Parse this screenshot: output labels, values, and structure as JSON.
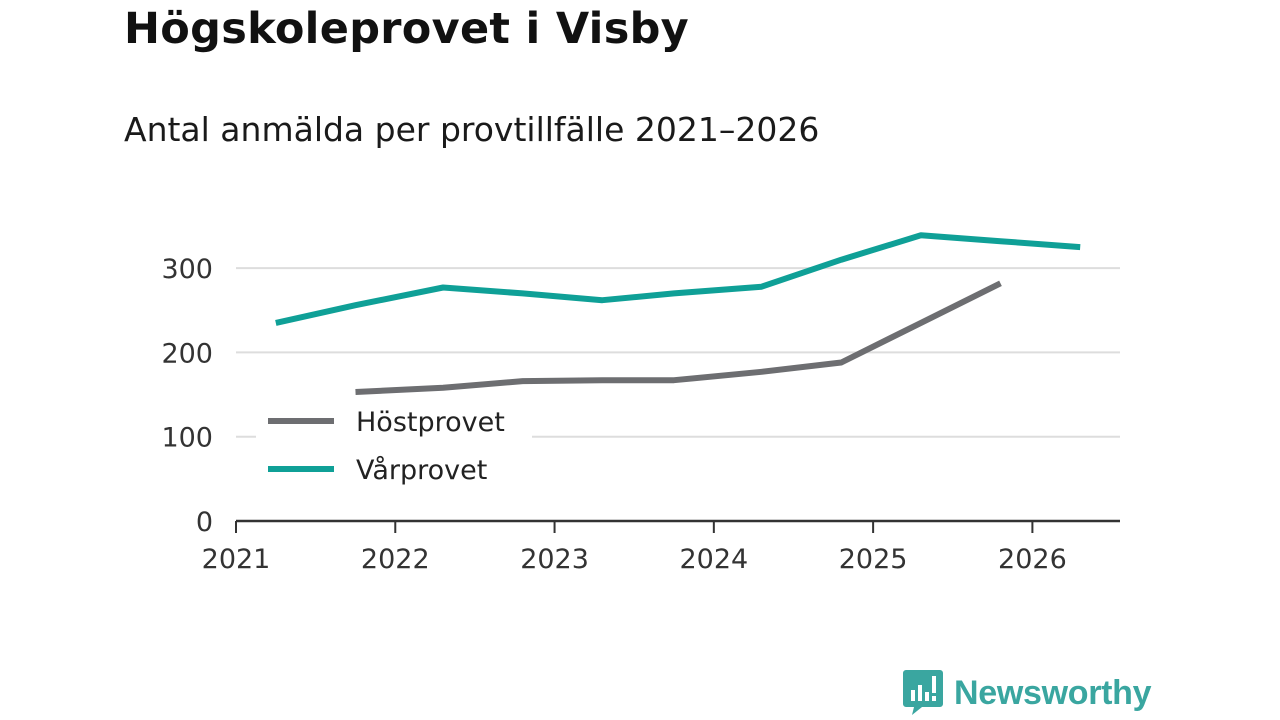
{
  "header": {
    "title": "Högskoleprovet i Visby",
    "subtitle": "Antal anmälda per provtillfälle 2021–2026"
  },
  "brand": {
    "name": "Newsworthy",
    "icon": "bar-chart-speech-bubble-icon",
    "color": "#3aa6a0"
  },
  "chart_data": {
    "type": "line",
    "title": "Högskoleprovet i Visby",
    "subtitle": "Antal anmälda per provtillfälle 2021–2026",
    "xlabel": "",
    "ylabel": "",
    "xlim": [
      2021,
      2026.55
    ],
    "ylim": [
      0,
      350
    ],
    "x_ticks": [
      "2021",
      "2022",
      "2023",
      "2024",
      "2025",
      "2026"
    ],
    "y_ticks": [
      "0",
      "100",
      "200",
      "300"
    ],
    "grid": true,
    "legend_position": "bottom-left",
    "series": [
      {
        "name": "Höstprovet",
        "color": "#6d6e71",
        "x": [
          2021.75,
          2022.3,
          2022.8,
          2023.3,
          2023.75,
          2024.3,
          2024.8,
          2025.3,
          2025.8
        ],
        "values": [
          153,
          158,
          166,
          167,
          167,
          177,
          188,
          235,
          282
        ]
      },
      {
        "name": "Vårprovet",
        "color": "#0fa097",
        "x": [
          2021.25,
          2021.75,
          2022.3,
          2022.8,
          2023.3,
          2023.75,
          2024.3,
          2024.8,
          2025.3,
          2025.8,
          2026.3
        ],
        "values": [
          235,
          256,
          277,
          270,
          262,
          270,
          278,
          310,
          339,
          332,
          325
        ]
      }
    ]
  }
}
